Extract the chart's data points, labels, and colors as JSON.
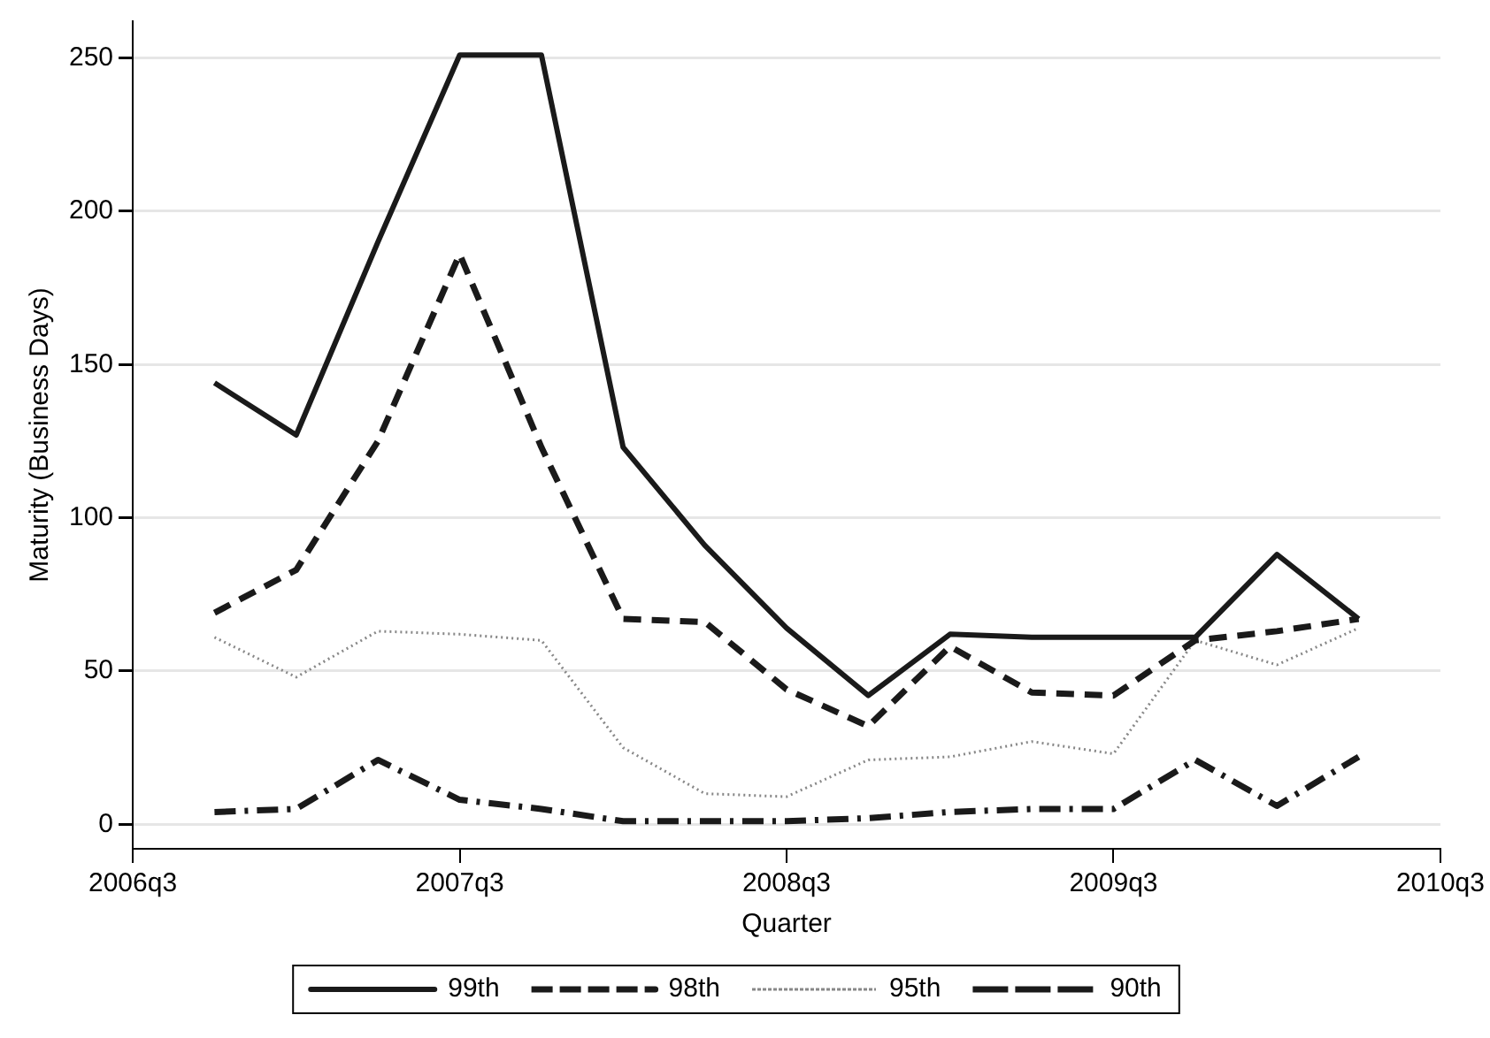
{
  "chart_data": {
    "type": "line",
    "xlabel": "Quarter",
    "ylabel": "Maturity (Business Days)",
    "categories": [
      "2006q3",
      null,
      null,
      null,
      "2007q3",
      null,
      null,
      null,
      "2008q3",
      null,
      null,
      null,
      "2009q3",
      null,
      null,
      null,
      "2010q3"
    ],
    "series": [
      {
        "name": "99th",
        "color": "#1a1a1a",
        "line_style": "solid",
        "values": [
          null,
          144,
          127,
          190,
          251,
          251,
          123,
          91,
          64,
          42,
          62,
          61,
          61,
          61,
          88,
          67,
          null
        ]
      },
      {
        "name": "98th",
        "color": "#1a1a1a",
        "line_style": "dashed",
        "values": [
          null,
          69,
          83,
          125,
          186,
          123,
          67,
          66,
          44,
          32,
          58,
          43,
          42,
          60,
          63,
          67,
          null
        ]
      },
      {
        "name": "95th",
        "color": "#888888",
        "line_style": "dotted",
        "values": [
          null,
          61,
          48,
          63,
          62,
          60,
          25,
          10,
          9,
          21,
          22,
          27,
          23,
          60,
          52,
          64,
          null
        ]
      },
      {
        "name": "90th",
        "color": "#1a1a1a",
        "line_style": "dashdot",
        "values": [
          null,
          4,
          5,
          21,
          8,
          5,
          1,
          1,
          1,
          2,
          4,
          5,
          5,
          21,
          6,
          22,
          null
        ]
      }
    ],
    "ylim": [
      -8,
      262
    ],
    "yticks": [
      0,
      50,
      100,
      150,
      200,
      250
    ],
    "grid": "y",
    "legend": "bottom",
    "marker": "none"
  }
}
